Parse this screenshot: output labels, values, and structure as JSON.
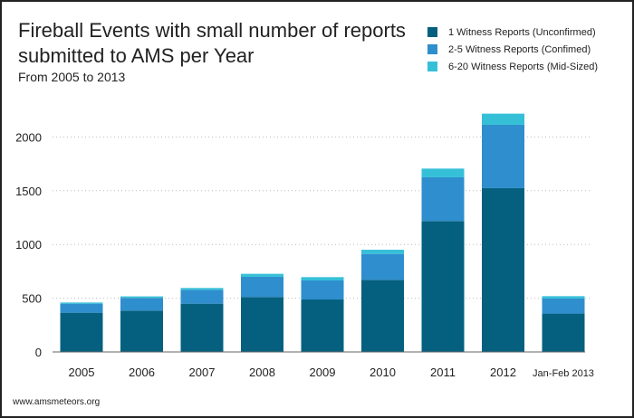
{
  "chart_data": {
    "type": "bar",
    "stacked": true,
    "title": "Fireball Events with small number of reports submitted to AMS per Year",
    "subtitle": "From 2005 to 2013",
    "categories": [
      "2005",
      "2006",
      "2007",
      "2008",
      "2009",
      "2010",
      "2011",
      "2012",
      "Jan-Feb 2013"
    ],
    "series": [
      {
        "name": "1 Witness Reports (Unconfirmed)",
        "color": "#05607f",
        "values": [
          365,
          385,
          449,
          511,
          488,
          671,
          1218,
          1524,
          357
        ]
      },
      {
        "name": "2-5 Witness Reports (Confimed)",
        "color": "#2f8ecd",
        "values": [
          84,
          118,
          129,
          188,
          177,
          241,
          407,
          589,
          140
        ]
      },
      {
        "name": "6-20 Witness Reports (Mid-Sized)",
        "color": "#35c0d8",
        "values": [
          11,
          14,
          17,
          28,
          31,
          39,
          81,
          104,
          22
        ]
      }
    ],
    "ylim": [
      0,
      2250
    ],
    "yticks": [
      0,
      500,
      1000,
      1500,
      2000
    ],
    "grid": true,
    "legend_position": "top-right",
    "xlabel": "",
    "ylabel": ""
  },
  "footer": "www.amsmeteors.org"
}
